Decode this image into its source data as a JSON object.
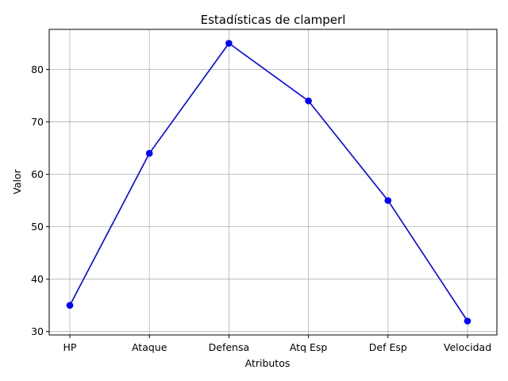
{
  "chart_data": {
    "type": "line",
    "title": "Estadísticas de clamperl",
    "xlabel": "Atributos",
    "ylabel": "Valor",
    "categories": [
      "HP",
      "Ataque",
      "Defensa",
      "Atq Esp",
      "Def Esp",
      "Velocidad"
    ],
    "series": [
      {
        "values": [
          35,
          64,
          85,
          74,
          55,
          32
        ],
        "color": "#0000ff",
        "marker": "circle"
      }
    ],
    "ylim": [
      29.35,
      87.65
    ],
    "yticks": [
      30,
      40,
      50,
      60,
      70,
      80
    ],
    "grid": true,
    "legend": "none"
  }
}
